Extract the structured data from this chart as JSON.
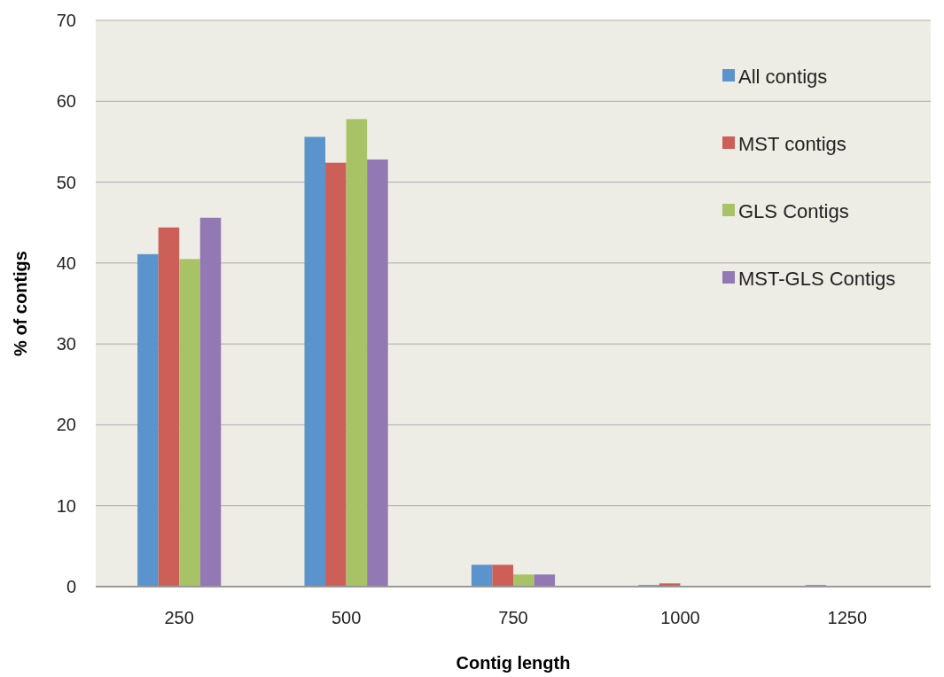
{
  "chart_data": {
    "type": "bar",
    "xlabel": "Contig length",
    "ylabel": "% of contigs",
    "categories": [
      "250",
      "500",
      "750",
      "1000",
      "1250"
    ],
    "series": [
      {
        "name": "All contigs",
        "color": "#5b93cc",
        "values": [
          41.1,
          55.6,
          2.7,
          0.2,
          0.2
        ]
      },
      {
        "name": "MST contigs",
        "color": "#cc5f58",
        "values": [
          44.4,
          52.4,
          2.7,
          0.4,
          0
        ]
      },
      {
        "name": "GLS Contigs",
        "color": "#a8c366",
        "values": [
          40.5,
          57.8,
          1.5,
          0,
          0
        ]
      },
      {
        "name": "MST-GLS Contigs",
        "color": "#9279b3",
        "values": [
          45.6,
          52.8,
          1.5,
          0,
          0
        ]
      }
    ],
    "ylim": [
      0,
      70
    ],
    "yticks": [
      0,
      10,
      20,
      30,
      40,
      50,
      60,
      70
    ],
    "grid": "y",
    "legend": "top right"
  }
}
